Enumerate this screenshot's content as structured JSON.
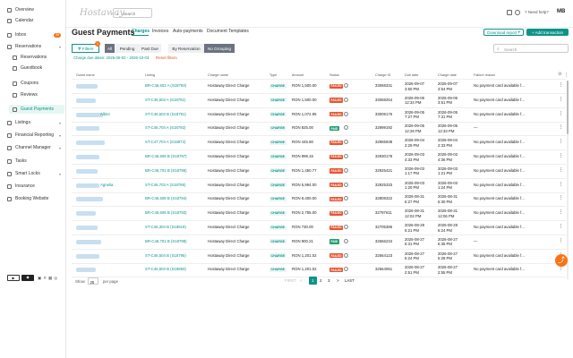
{
  "sidebar": {
    "items": [
      {
        "label": "Overview"
      },
      {
        "label": "Calendar"
      },
      {
        "label": "Inbox",
        "badge": "39"
      },
      {
        "label": "Reservations"
      },
      {
        "label": "Reservations"
      },
      {
        "label": "Guestbook"
      },
      {
        "label": "Coupons"
      },
      {
        "label": "Reviews"
      },
      {
        "label": "Guest Payments"
      },
      {
        "label": "Listings"
      },
      {
        "label": "Financial Reporting"
      },
      {
        "label": "Channel Manager"
      },
      {
        "label": "Tasks"
      },
      {
        "label": "Smart Locks"
      },
      {
        "label": "Insurance"
      },
      {
        "label": "Booking Website"
      }
    ]
  },
  "header": {
    "logo": "Hostaway",
    "search_placeholder": "Search",
    "help": "Need help?",
    "avatar": "MB"
  },
  "page": {
    "title": "Guest Payments",
    "tabs": [
      "Charges",
      "Invoices",
      "Auto-payments",
      "Document Templates"
    ],
    "export": "Download report",
    "add": "+ Add transaction",
    "filters": "Filters",
    "filter_count": "1",
    "chips": [
      "All",
      "Pending",
      "Past Due",
      "By Reservation",
      "No Grouping"
    ],
    "search_placeholder": "Search",
    "filter_summary": "Charge due dates: 2026-06-02 - 2026-10-03",
    "reset": "Reset filters"
  },
  "table": {
    "headers": [
      "Guest name",
      "Listing",
      "Charge name",
      "Type",
      "Amount",
      "Status",
      "Charge ID",
      "Due date",
      "Charge date",
      "Failure reason"
    ],
    "rows": [
      {
        "guest": "",
        "listing": "BR-C46,602 A (S18793)",
        "charge": "Hostaway Direct Charge",
        "type": "CHARGE",
        "amount": "RON 1,500.00",
        "status": "FAILED",
        "id": "33068331",
        "due": "2026-09-07",
        "due2": "3:50 PM",
        "date": "2026-09-07",
        "date2": "3:54 PM",
        "reason": "No payment card available f..."
      },
      {
        "guest": "",
        "listing": "ST-C46,603 A (S18791)",
        "charge": "Hostaway Direct Charge",
        "type": "CHARGE",
        "amount": "RON 1,500.00",
        "status": "FAILED",
        "id": "33068254",
        "due": "2026-09-06",
        "due2": "12:34 PM",
        "date": "2026-09-06",
        "date2": "3:51 PM",
        "reason": "No payment card available f..."
      },
      {
        "guest": "Albinr",
        "listing": "ST-C46,603 B (S18791)",
        "charge": "Hostaway Direct Charge",
        "type": "CHARGE",
        "amount": "RON 1,072.95",
        "status": "FAILED",
        "id": "33009176",
        "due": "2026-09-05",
        "due2": "7:27 PM",
        "date": "2026-09-05",
        "date2": "7:31 PM",
        "reason": "No payment card available f..."
      },
      {
        "guest": "",
        "listing": "ST-C46,704 A (S18792)",
        "charge": "Hostaway Direct Charge",
        "type": "CHARGE",
        "amount": "RON 825.00",
        "status": "PAID",
        "id": "32999192",
        "due": "2026-09-05",
        "due2": "12:28 PM",
        "date": "2026-09-05",
        "date2": "12:33 PM",
        "reason": "—"
      },
      {
        "guest": "",
        "listing": "ST-C47,704 A (S18872)",
        "charge": "Hostaway Direct Charge",
        "type": "CHARGE",
        "amount": "RON 445.80",
        "status": "FAILED",
        "id": "32965938",
        "due": "2026-09-04",
        "due2": "2:29 PM",
        "date": "2026-09-04",
        "date2": "2:33 PM",
        "reason": "No payment card available f..."
      },
      {
        "guest": "",
        "listing": "BR-C46,505 B (S18797)",
        "charge": "Hostaway Direct Charge",
        "type": "CHARGE",
        "amount": "RON 998.16",
        "status": "FAILED",
        "id": "32930178",
        "due": "2026-09-03",
        "due2": "4:33 PM",
        "date": "2026-09-03",
        "date2": "4:36 PM",
        "reason": "No payment card available f..."
      },
      {
        "guest": "",
        "listing": "BR-C46,701 B (S18798)",
        "charge": "Hostaway Direct Charge",
        "type": "CHARGE",
        "amount": "RON 1,450.77",
        "status": "FAILED",
        "id": "32925421",
        "due": "2026-09-03",
        "due2": "1:17 PM",
        "date": "2026-09-03",
        "date2": "1:21 PM",
        "reason": "No payment card available f..."
      },
      {
        "guest": "Agnelia",
        "listing": "ST-C46,703 A (S18786)",
        "charge": "Hostaway Direct Charge",
        "type": "CHARGE",
        "amount": "RON 5,994.00",
        "status": "FAILED",
        "id": "32925333",
        "due": "2026-09-03",
        "due2": "1:20 PM",
        "date": "2026-09-03",
        "date2": "1:24 PM",
        "reason": "No payment card available f..."
      },
      {
        "guest": "",
        "listing": "BR-C46,508 B (S18794)",
        "charge": "Hostaway Direct Charge",
        "type": "CHARGE",
        "amount": "RON 8,400.00",
        "status": "FAILED",
        "id": "32808322",
        "due": "2026-08-31",
        "due2": "6:27 PM",
        "date": "2026-08-31",
        "date2": "6:30 PM",
        "reason": "No payment card available f..."
      },
      {
        "guest": "",
        "listing": "BR-C46,606 B (S18793)",
        "charge": "Hostaway Direct Charge",
        "type": "CHARGE",
        "amount": "RON 2,755.00",
        "status": "FAILED",
        "id": "32797611",
        "due": "2026-08-31",
        "due2": "12:02 PM",
        "date": "2026-08-31",
        "date2": "12:06 PM",
        "reason": "No payment card available f..."
      },
      {
        "guest": "",
        "listing": "ST-C46,304 B (S18619)",
        "charge": "Hostaway Direct Charge",
        "type": "CHARGE",
        "amount": "RON 730.00",
        "status": "FAILED",
        "id": "32705386",
        "due": "2026-08-28",
        "due2": "6:21 PM",
        "date": "2026-08-28",
        "date2": "6:24 PM",
        "reason": "No payment card available f..."
      },
      {
        "guest": "",
        "listing": "BR-C46,701 B (S18798)",
        "charge": "Hostaway Direct Charge",
        "type": "CHARGE",
        "amount": "RON 900.21",
        "status": "PAID",
        "id": "32666234",
        "due": "2026-08-27",
        "due2": "6:31 PM",
        "date": "2026-08-27",
        "date2": "6:35 PM",
        "reason": "—"
      },
      {
        "guest": "",
        "listing": "ST-C46,504 B (S18795)",
        "charge": "Hostaway Direct Charge",
        "type": "CHARGE",
        "amount": "RON 1,201.02",
        "status": "FAILED",
        "id": "32664123",
        "due": "2026-08-27",
        "due2": "5:24 PM",
        "date": "2026-08-27",
        "date2": "5:28 PM",
        "reason": "No payment card available f..."
      },
      {
        "guest": "",
        "listing": "ST-C46,503 B (S18693)",
        "charge": "Hostaway Direct Charge",
        "type": "CHARGE",
        "amount": "RON 1,201.02",
        "status": "FAILED",
        "id": "32664061",
        "due": "2026-08-27",
        "due2": "2:51 PM",
        "date": "2026-08-27",
        "date2": "2:55 PM",
        "reason": "No payment card available f..."
      }
    ]
  },
  "pagination": {
    "show": "Show",
    "per_page": "25",
    "per_page_suffix": "per page",
    "pages": [
      "1",
      "2",
      "3"
    ],
    "next": ">",
    "last": "LAST",
    "first": "FIRST",
    "prev": "<"
  },
  "colors": {
    "accent": "#0d9488",
    "failed": "#e8542f",
    "paid": "#22a06b",
    "fab": "#f97316"
  }
}
